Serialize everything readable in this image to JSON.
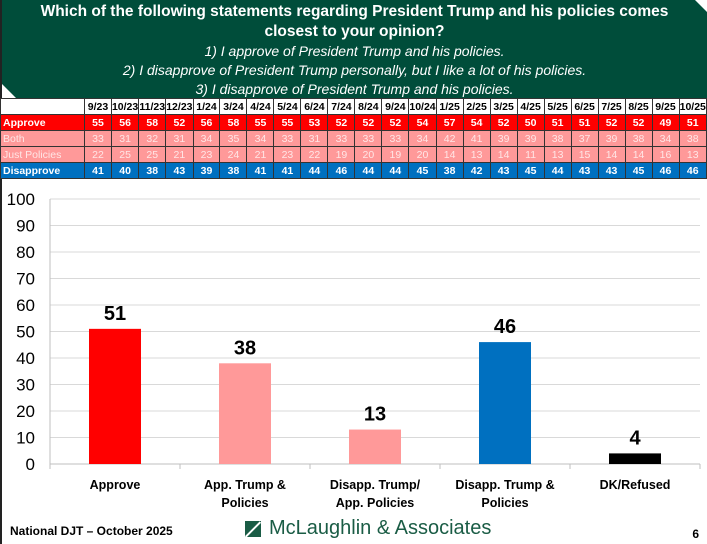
{
  "header": {
    "question": "Which of the following statements regarding President Trump and his policies comes closest to your opinion?",
    "options": [
      "1) I approve of President Trump and his policies.",
      "2) I disapprove of President Trump personally, but I like a lot of his policies.",
      "3) I disapprove of President Trump and his policies."
    ]
  },
  "trend_table": {
    "dates": [
      "9/23",
      "10/23",
      "11/23",
      "12/23",
      "1/24",
      "3/24",
      "4/24",
      "5/24",
      "6/24",
      "7/24",
      "8/24",
      "9/24",
      "10/24",
      "1/25",
      "2/25",
      "3/25",
      "4/25",
      "5/25",
      "6/25",
      "7/25",
      "8/25",
      "9/25",
      "10/25"
    ],
    "rows": [
      {
        "label": "Approve",
        "values": [
          55,
          56,
          58,
          52,
          56,
          58,
          55,
          55,
          53,
          52,
          52,
          52,
          54,
          57,
          54,
          52,
          50,
          51,
          51,
          52,
          52,
          49,
          51
        ]
      },
      {
        "label": "Both",
        "values": [
          33,
          31,
          32,
          31,
          34,
          35,
          34,
          33,
          31,
          33,
          33,
          33,
          34,
          42,
          41,
          39,
          39,
          38,
          37,
          39,
          38,
          34,
          38
        ]
      },
      {
        "label": "Just Policies",
        "values": [
          22,
          25,
          25,
          21,
          23,
          24,
          21,
          23,
          22,
          19,
          20,
          19,
          20,
          14,
          13,
          14,
          11,
          13,
          15,
          14,
          14,
          16,
          13
        ]
      },
      {
        "label": "Disapprove",
        "values": [
          41,
          40,
          38,
          43,
          39,
          38,
          41,
          41,
          44,
          46,
          44,
          44,
          45,
          38,
          42,
          43,
          45,
          44,
          43,
          43,
          45,
          46,
          46
        ]
      }
    ]
  },
  "chart_data": {
    "type": "bar",
    "title": "",
    "xlabel": "",
    "ylabel": "",
    "categories": [
      "Approve",
      "App. Trump & Policies",
      "Disapp. Trump/ App. Policies",
      "Disapp. Trump & Policies",
      "DK/Refused"
    ],
    "category_lines": [
      [
        "Approve"
      ],
      [
        "App. Trump &",
        "Policies"
      ],
      [
        "Disapp. Trump/",
        "App. Policies"
      ],
      [
        "Disapp. Trump &",
        "Policies"
      ],
      [
        "DK/Refused"
      ]
    ],
    "values": [
      51,
      38,
      13,
      46,
      4
    ],
    "colors": [
      "#ff0000",
      "#ff9999",
      "#ff9999",
      "#0070c0",
      "#000000"
    ],
    "ylim": [
      0,
      100
    ],
    "yticks": [
      0,
      10,
      20,
      30,
      40,
      50,
      60,
      70,
      80,
      90,
      100
    ],
    "grid": true,
    "legend": "none"
  },
  "footer": {
    "survey": "National DJT – October 2025",
    "firm": "McLaughlin & Associates",
    "page": "6"
  }
}
